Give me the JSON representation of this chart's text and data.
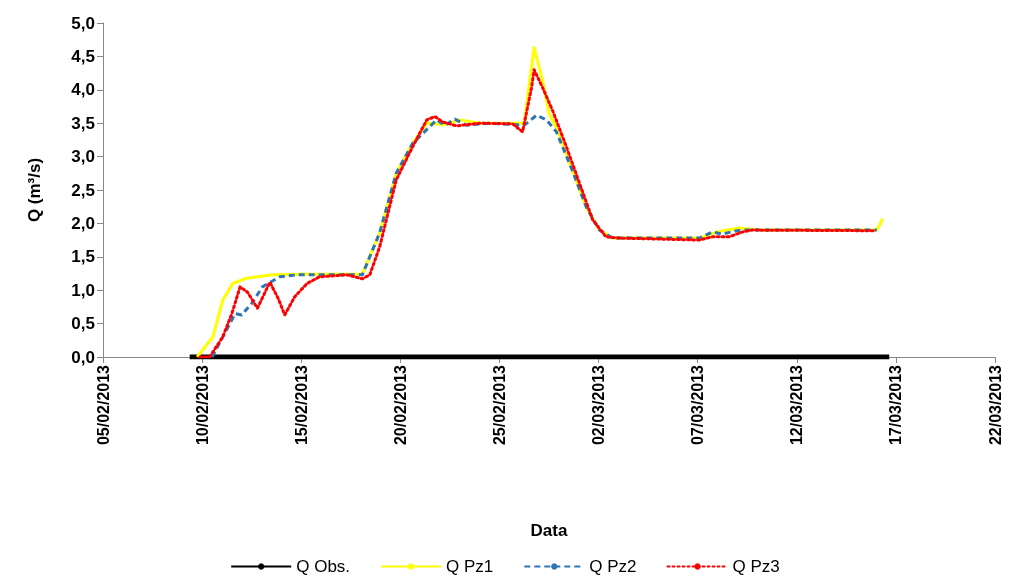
{
  "chart_data": {
    "type": "line",
    "xlabel": "Data",
    "ylabel": "Q (m³/s)",
    "xlim": [
      "2013-02-05",
      "2013-03-22"
    ],
    "xticks": [
      {
        "value": "2013-02-05",
        "label": "05/02/2013"
      },
      {
        "value": "2013-02-10",
        "label": "10/02/2013"
      },
      {
        "value": "2013-02-15",
        "label": "15/02/2013"
      },
      {
        "value": "2013-02-20",
        "label": "20/02/2013"
      },
      {
        "value": "2013-02-25",
        "label": "25/02/2013"
      },
      {
        "value": "2013-03-02",
        "label": "02/03/2013"
      },
      {
        "value": "2013-03-07",
        "label": "07/03/2013"
      },
      {
        "value": "2013-03-12",
        "label": "12/03/2013"
      },
      {
        "value": "2013-03-17",
        "label": "17/03/2013"
      },
      {
        "value": "2013-03-22",
        "label": "22/03/2013"
      }
    ],
    "ylim": [
      0,
      5
    ],
    "yticks": [
      {
        "value": 0,
        "label": "0,0"
      },
      {
        "value": 0.5,
        "label": "0,5"
      },
      {
        "value": 1,
        "label": "1,0"
      },
      {
        "value": 1.5,
        "label": "1,5"
      },
      {
        "value": 2,
        "label": "2,0"
      },
      {
        "value": 2.5,
        "label": "2,5"
      },
      {
        "value": 3,
        "label": "3,0"
      },
      {
        "value": 3.5,
        "label": "3,5"
      },
      {
        "value": 4,
        "label": "4,0"
      },
      {
        "value": 4.5,
        "label": "4,5"
      },
      {
        "value": 5,
        "label": "5,0"
      }
    ],
    "grid": false,
    "legend": "bottom",
    "marker": "none",
    "series": [
      {
        "name": "Q Obs.",
        "color": "#000000",
        "line_style": "solid",
        "x": [
          "2013-02-09T09:00",
          "2013-03-16T16:00"
        ],
        "values": [
          0,
          0
        ]
      },
      {
        "name": "Q Pz1",
        "color": "#ffff00",
        "line_style": "solid",
        "x": [
          "2013-02-09T18:00",
          "2013-02-10T13:00",
          "2013-02-11T01:00",
          "2013-02-11T13:00",
          "2013-02-12T06:00",
          "2013-02-13T13:00",
          "2013-02-14T22:00",
          "2013-02-18T02:00",
          "2013-02-18T23:00",
          "2013-02-19T19:00",
          "2013-02-20T15:00",
          "2013-02-21T08:00",
          "2013-02-22T06:00",
          "2013-02-23T00:00",
          "2013-02-24T00:00",
          "2013-02-25T00:00",
          "2013-02-26T00:00",
          "2013-02-26T06:00",
          "2013-02-26T18:00",
          "2013-02-27T04:00",
          "2013-02-27T12:00",
          "2013-02-28T00:00",
          "2013-02-28T16:00",
          "2013-03-01T09:00",
          "2013-03-02T01:00",
          "2013-03-02T17:00",
          "2013-03-07T02:00",
          "2013-03-08T02:00",
          "2013-03-09T02:00",
          "2013-03-10T02:00",
          "2013-03-16T01:00",
          "2013-03-16T08:00"
        ],
        "values": [
          0,
          0.3,
          0.85,
          1.1,
          1.18,
          1.23,
          1.24,
          1.24,
          1.86,
          2.75,
          3.2,
          3.5,
          3.48,
          3.55,
          3.5,
          3.5,
          3.5,
          3.5,
          4.63,
          4.15,
          3.65,
          3.35,
          2.8,
          2.25,
          1.9,
          1.78,
          1.78,
          1.88,
          1.93,
          1.9,
          1.9,
          2.07
        ]
      },
      {
        "name": "Q Pz2",
        "color": "#2e75b6",
        "line_style": "dashed",
        "x": [
          "2013-02-10T12:00",
          "2013-02-11T01:00",
          "2013-02-11T16:00",
          "2013-02-12T00:00",
          "2013-02-12T12:00",
          "2013-02-13T01:00",
          "2013-02-13T22:00",
          "2013-02-14T18:00",
          "2013-02-18T02:00",
          "2013-02-18T23:00",
          "2013-02-19T19:00",
          "2013-02-20T15:00",
          "2013-02-21T20:00",
          "2013-02-22T06:00",
          "2013-02-22T18:00",
          "2013-02-23T08:00",
          "2013-02-24T12:00",
          "2013-02-26T06:00",
          "2013-02-26T21:00",
          "2013-02-27T09:00",
          "2013-02-27T21:00",
          "2013-02-28T16:00",
          "2013-03-01T09:00",
          "2013-03-02T01:00",
          "2013-03-02T17:00",
          "2013-03-07T02:00",
          "2013-03-07T18:00",
          "2013-03-08T06:00",
          "2013-03-08T23:00",
          "2013-03-09T11:00",
          "2013-03-16T01:00"
        ],
        "values": [
          0,
          0.3,
          0.65,
          0.63,
          0.8,
          1.05,
          1.2,
          1.23,
          1.23,
          1.86,
          2.75,
          3.2,
          3.55,
          3.47,
          3.56,
          3.47,
          3.5,
          3.47,
          3.62,
          3.55,
          3.37,
          2.8,
          2.25,
          1.9,
          1.78,
          1.78,
          1.87,
          1.84,
          1.89,
          1.9,
          1.9
        ]
      },
      {
        "name": "Q Pz3",
        "color": "#ff0000",
        "line_style": "dotted",
        "x": [
          "2013-02-09T21:00",
          "2013-02-10T09:00",
          "2013-02-11T01:00",
          "2013-02-11T12:00",
          "2013-02-11T22:00",
          "2013-02-12T07:00",
          "2013-02-12T19:00",
          "2013-02-13T10:00",
          "2013-02-13T20:00",
          "2013-02-14T04:00",
          "2013-02-14T16:00",
          "2013-02-15T07:00",
          "2013-02-15T22:00",
          "2013-02-17T07:00",
          "2013-02-18T02:00",
          "2013-02-18T11:00",
          "2013-02-18T23:00",
          "2013-02-19T19:00",
          "2013-02-20T15:00",
          "2013-02-21T08:00",
          "2013-02-21T18:00",
          "2013-02-22T03:00",
          "2013-02-22T20:00",
          "2013-02-24T00:00",
          "2013-02-25T16:00",
          "2013-02-26T04:00",
          "2013-02-26T15:00",
          "2013-02-26T18:00",
          "2013-02-27T04:00",
          "2013-02-27T16:00",
          "2013-02-28T09:00",
          "2013-03-01T01:00",
          "2013-03-01T17:00",
          "2013-03-02T09:00",
          "2013-03-03T01:00",
          "2013-03-07T02:00",
          "2013-03-07T18:00",
          "2013-03-08T14:00",
          "2013-03-09T06:00",
          "2013-03-09T18:00",
          "2013-03-16T00:00"
        ],
        "values": [
          0,
          0,
          0.3,
          0.65,
          1.05,
          0.97,
          0.73,
          1.12,
          0.88,
          0.63,
          0.9,
          1.1,
          1.2,
          1.23,
          1.17,
          1.23,
          1.65,
          2.65,
          3.15,
          3.55,
          3.6,
          3.52,
          3.46,
          3.5,
          3.49,
          3.37,
          4.04,
          4.3,
          4.04,
          3.7,
          3.15,
          2.6,
          2.05,
          1.8,
          1.78,
          1.75,
          1.8,
          1.8,
          1.87,
          1.9,
          1.89
        ]
      }
    ]
  }
}
